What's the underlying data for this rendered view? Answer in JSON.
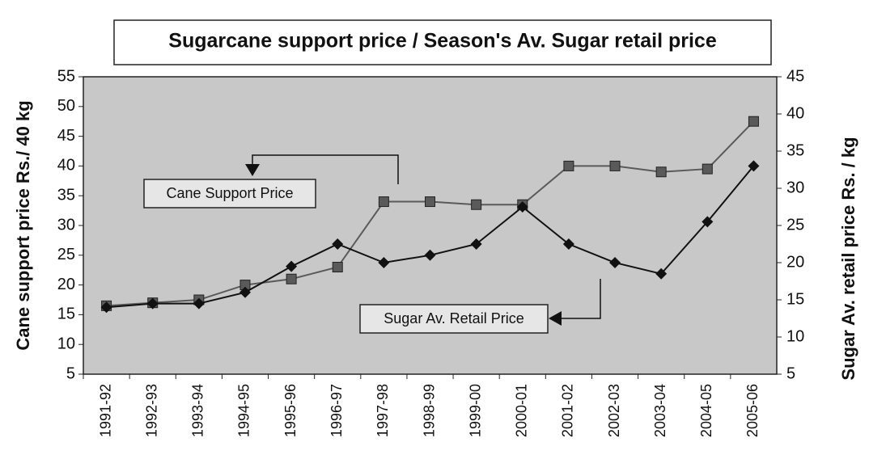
{
  "chart_data": {
    "type": "line",
    "title": "Sugarcane support price / Season's Av. Sugar retail price",
    "y_label": "Cane support price Rs./ 40 kg",
    "y2_label": "Sugar Av. retail price Rs. / kg",
    "categories": [
      "1991-92",
      "1992-93",
      "1993-94",
      "1994-95",
      "1995-96",
      "1996-97",
      "1997-98",
      "1998-99",
      "1999-00",
      "2000-01",
      "2001-02",
      "2002-03",
      "2003-04",
      "2004-05",
      "2005-06"
    ],
    "series": [
      {
        "name": "Cane Support Price",
        "color": "#5a5a5a",
        "marker": "square",
        "axis": "y",
        "values": [
          16.5,
          17,
          17.5,
          20,
          21,
          23,
          34,
          34,
          33.5,
          33.5,
          40,
          40,
          39,
          39.5,
          47.5
        ]
      },
      {
        "name": "Sugar Av. Retail Price",
        "color": "#111111",
        "marker": "diamond",
        "axis": "y2",
        "values": [
          14,
          14.5,
          14.5,
          16,
          19.5,
          22.5,
          20,
          21,
          22.5,
          27.5,
          22.5,
          20,
          18.5,
          25.5,
          33
        ]
      }
    ],
    "ylim": [
      5,
      55
    ],
    "yticks": [
      5,
      10,
      15,
      20,
      25,
      30,
      35,
      40,
      45,
      50,
      55
    ],
    "y2lim": [
      5,
      45
    ],
    "y2ticks": [
      5,
      10,
      15,
      20,
      25,
      30,
      35,
      40,
      45
    ]
  }
}
